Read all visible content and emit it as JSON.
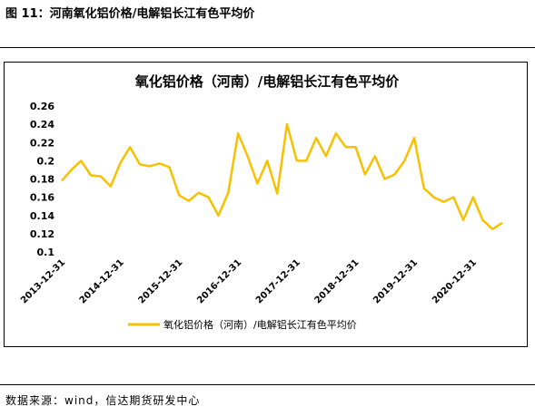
{
  "figure": {
    "title": "图 11：河南氧化铝价格/电解铝长江有色平均价",
    "source": "数据来源：wind，信达期货研发中心"
  },
  "colors": {
    "series": "#F7C100"
  },
  "chart_data": {
    "type": "line",
    "title": "氧化铝价格（河南）/电解铝长江有色平均价",
    "xlabel": "",
    "ylabel": "",
    "ylim": [
      0.1,
      0.26
    ],
    "yticks": [
      "0.26",
      "0.24",
      "0.22",
      "0.2",
      "0.18",
      "0.16",
      "0.14",
      "0.12",
      "0.1"
    ],
    "xticks": [
      "2013-12-31",
      "2014-12-31",
      "2015-12-31",
      "2016-12-31",
      "2017-12-31",
      "2018-12-31",
      "2019-12-31",
      "2020-12-31"
    ],
    "grid": false,
    "legend": "bottom",
    "series": [
      {
        "name": "氧化铝价格（河南）/电解铝长江有色平均价",
        "x": [
          "2013-12-31",
          "2014-02-28",
          "2014-04-30",
          "2014-06-30",
          "2014-08-31",
          "2014-10-31",
          "2014-12-31",
          "2015-02-28",
          "2015-04-30",
          "2015-06-30",
          "2015-08-31",
          "2015-10-31",
          "2015-12-31",
          "2016-02-29",
          "2016-04-30",
          "2016-06-30",
          "2016-08-31",
          "2016-10-31",
          "2016-12-31",
          "2017-02-28",
          "2017-04-30",
          "2017-06-30",
          "2017-08-31",
          "2017-10-31",
          "2017-12-31",
          "2018-02-28",
          "2018-04-30",
          "2018-06-30",
          "2018-08-31",
          "2018-10-31",
          "2018-12-31",
          "2019-02-28",
          "2019-04-30",
          "2019-06-30",
          "2019-08-31",
          "2019-10-31",
          "2019-12-31",
          "2020-02-29",
          "2020-04-30",
          "2020-06-30",
          "2020-08-31",
          "2020-10-31",
          "2020-12-31",
          "2021-02-28",
          "2021-04-30",
          "2021-06-30"
        ],
        "values": [
          0.178,
          0.19,
          0.2,
          0.184,
          0.183,
          0.172,
          0.198,
          0.215,
          0.196,
          0.194,
          0.197,
          0.193,
          0.162,
          0.156,
          0.165,
          0.16,
          0.14,
          0.165,
          0.23,
          0.205,
          0.175,
          0.2,
          0.164,
          0.24,
          0.2,
          0.2,
          0.225,
          0.205,
          0.23,
          0.215,
          0.215,
          0.185,
          0.205,
          0.18,
          0.185,
          0.2,
          0.225,
          0.17,
          0.16,
          0.155,
          0.16,
          0.135,
          0.16,
          0.135,
          0.125,
          0.132
        ]
      }
    ]
  }
}
